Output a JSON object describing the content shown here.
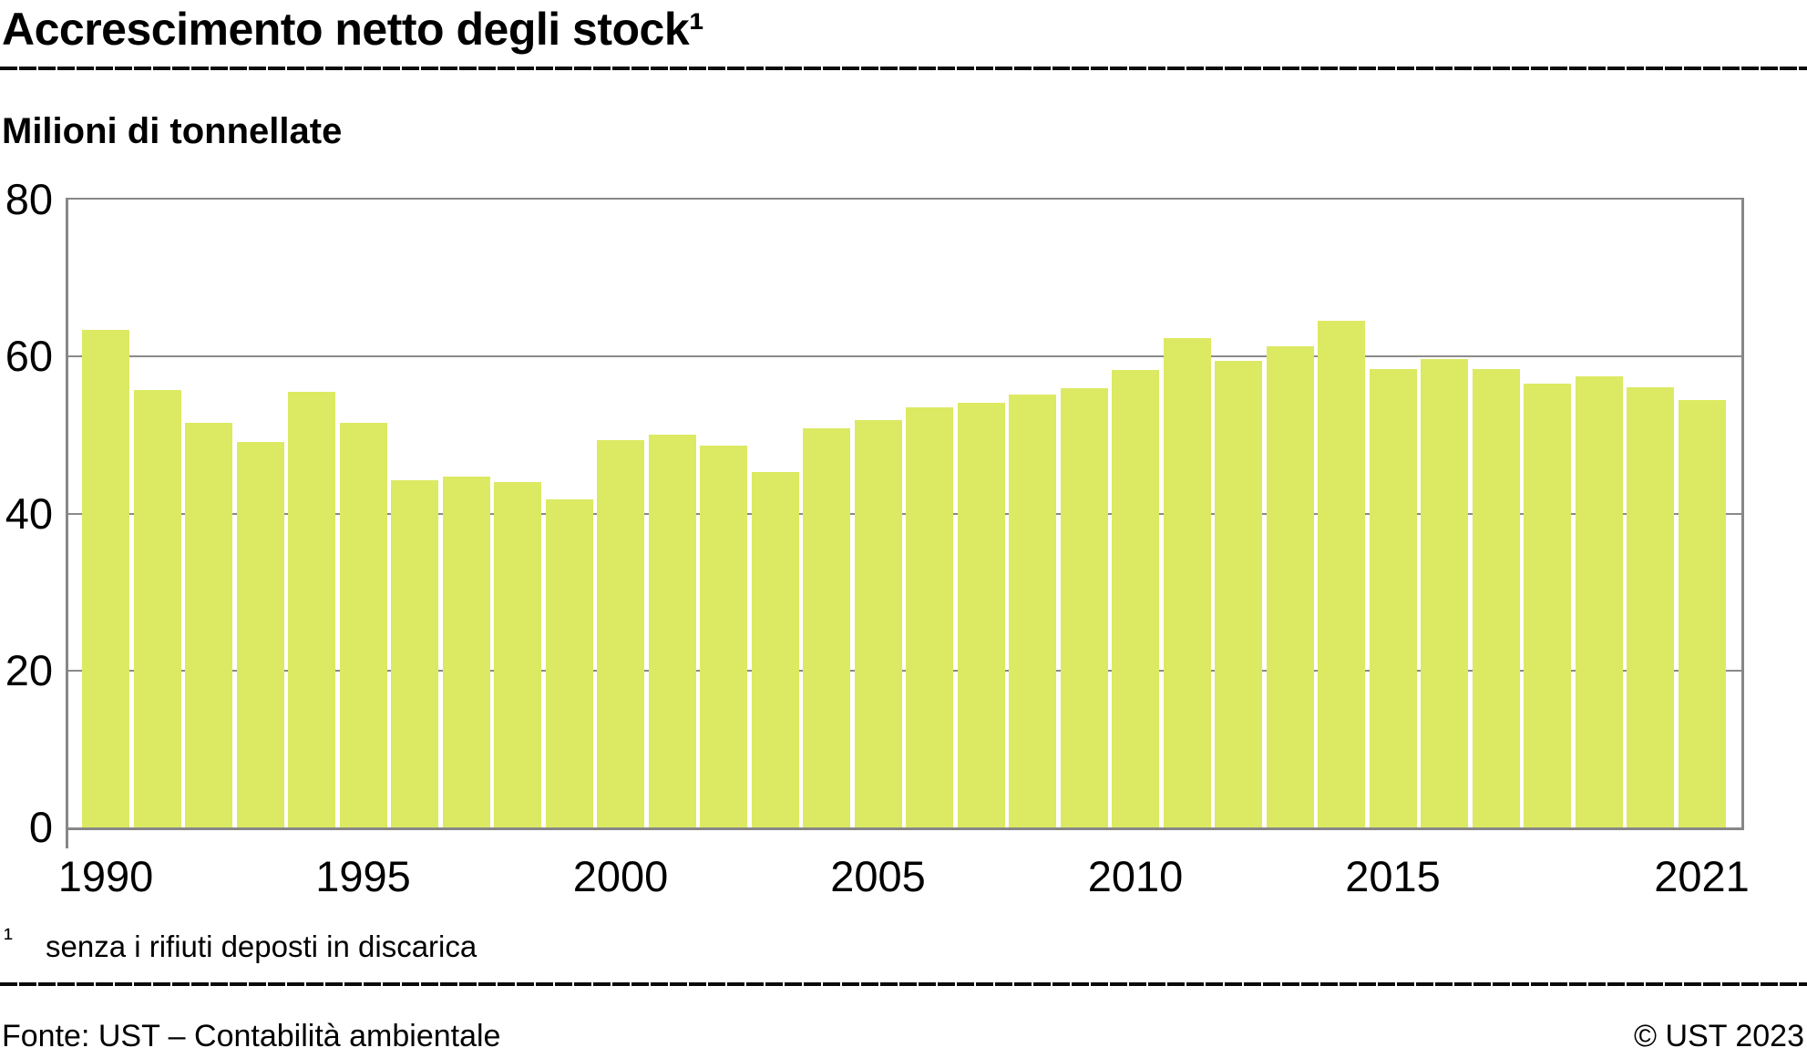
{
  "header": {
    "title": "Accrescimento netto degli stock¹",
    "unit": "Milioni di tonnellate"
  },
  "chart_data": {
    "type": "bar",
    "title": "Accrescimento netto degli stock¹",
    "ylabel": "Milioni di tonnellate",
    "ylim": [
      0,
      80
    ],
    "yticks": [
      0,
      20,
      40,
      60,
      80
    ],
    "grid_on": true,
    "x_tick_years": [
      1990,
      1995,
      2000,
      2005,
      2010,
      2015,
      2021
    ],
    "categories": [
      1990,
      1991,
      1992,
      1993,
      1994,
      1995,
      1996,
      1997,
      1998,
      1999,
      2000,
      2001,
      2002,
      2003,
      2004,
      2005,
      2006,
      2007,
      2008,
      2009,
      2010,
      2011,
      2012,
      2013,
      2014,
      2015,
      2016,
      2017,
      2018,
      2019,
      2020,
      2021
    ],
    "values": [
      63.4,
      55.7,
      51.5,
      49.1,
      55.5,
      51.5,
      44.2,
      44.7,
      44.0,
      41.8,
      49.4,
      50.0,
      48.6,
      45.3,
      50.8,
      51.9,
      53.5,
      54.1,
      55.2,
      56.0,
      58.3,
      62.4,
      59.4,
      61.3,
      64.5,
      58.4,
      59.7,
      58.4,
      56.6,
      57.5,
      56.1,
      54.5
    ],
    "colors": {
      "bar": "#dce962",
      "grid": "#8a8a8a",
      "axis": "#878787",
      "text": "#000000"
    }
  },
  "footnote": {
    "marker": "¹",
    "text": "senza i rifiuti deposti in discarica"
  },
  "footer": {
    "source": "Fonte: UST – Contabilità ambientale",
    "copyright": "© UST 2023"
  }
}
